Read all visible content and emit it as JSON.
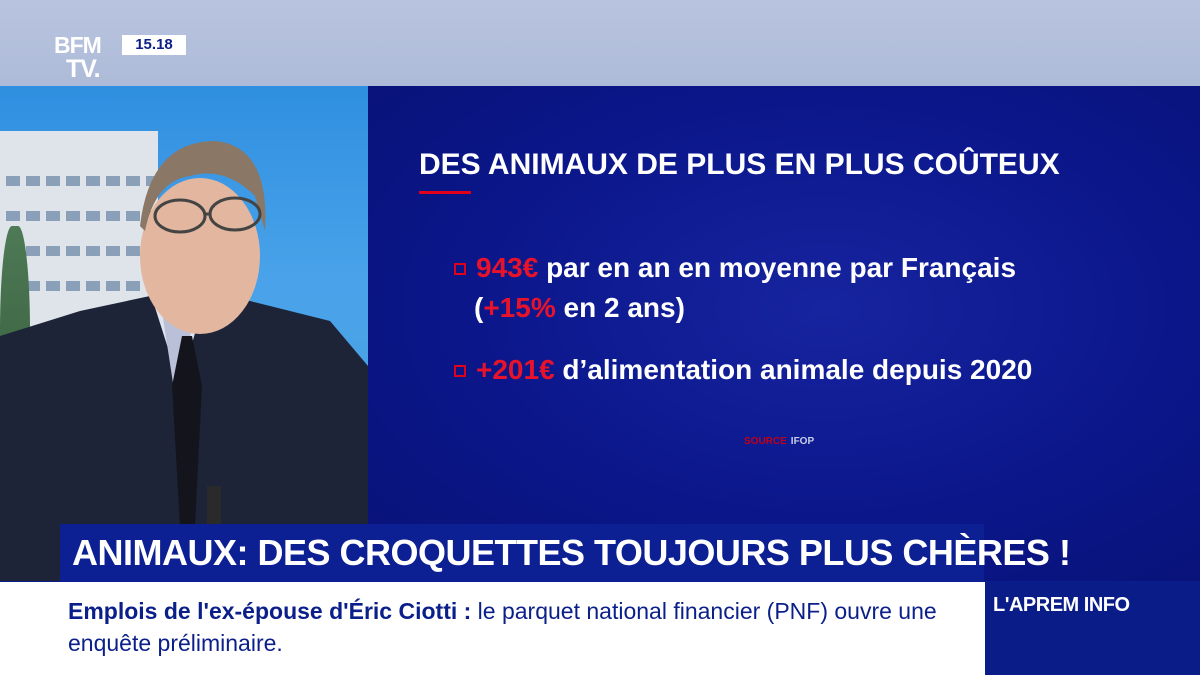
{
  "channel": {
    "logo_line1": "BFM",
    "logo_line2": "TV.",
    "time": "15.18"
  },
  "panel": {
    "title": "DES ANIMAUX DE PLUS EN PLUS COÛTEUX",
    "bullets": [
      {
        "highlight": "943€",
        "text": " par en an en moyenne par Français",
        "line2_open": "(",
        "line2_highlight": "+15%",
        "line2_text": " en 2 ans)"
      },
      {
        "highlight": "+201€",
        "text": " d’alimentation animale depuis 2020"
      }
    ],
    "source_key": "SOURCE",
    "source_value": "IFOP"
  },
  "headline": "ANIMAUX: DES CROQUETTES TOUJOURS PLUS CHÈRES !",
  "ticker": {
    "bold": "Emplois de l'ex-épouse d'Éric Ciotti :",
    "rest": " le parquet national financier (PNF) ouvre une enquête préliminaire.",
    "program": "L'APREM INFO"
  },
  "colors": {
    "accent_red": "#e8132a",
    "navy": "#0c1f93"
  }
}
